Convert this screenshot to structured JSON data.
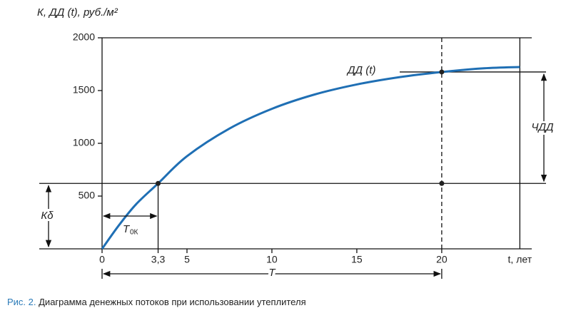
{
  "chart_data": {
    "type": "line",
    "y_label": "К, ДД (t), руб./м²",
    "x_label": "t, лет",
    "x": [
      0,
      1,
      2,
      3.3,
      5,
      7.5,
      10,
      12.5,
      15,
      17.5,
      20,
      22.5,
      24.6
    ],
    "series": [
      {
        "name": "ДД (t)",
        "color": "#1f6fb4",
        "values": [
          0,
          225,
          422,
          620,
          878,
          1140,
          1327,
          1462,
          1558,
          1627,
          1676,
          1711,
          1723
        ]
      }
    ],
    "xlim": [
      0,
      25.3
    ],
    "ylim": [
      0,
      2000
    ],
    "xticks": [
      0,
      {
        "value": 3.3,
        "label": "3,3"
      },
      5,
      10,
      15,
      20
    ],
    "yticks": [
      500,
      1000,
      1500,
      2000
    ],
    "annotations": {
      "chdd": "ЧДД",
      "kb": "Кδ",
      "t0k": "T",
      "t0k_sub": "0К",
      "t_period": "T"
    }
  },
  "caption_label": "Рис. 2.",
  "caption": "Диаграмма денежных потоков при использовании утеплителя"
}
